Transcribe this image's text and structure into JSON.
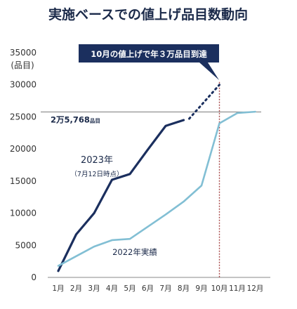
{
  "chart_data": {
    "type": "line",
    "title": "実施ベースでの値上げ品目数動向",
    "ylabel": "(品目)",
    "ylim": [
      0,
      35000
    ],
    "yticks": [
      0,
      5000,
      10000,
      15000,
      20000,
      25000,
      30000,
      35000
    ],
    "categories": [
      "1月",
      "2月",
      "3月",
      "4月",
      "5月",
      "6月",
      "7月",
      "8月",
      "9月",
      "10月",
      "11月",
      "12月"
    ],
    "series": [
      {
        "name": "2023年",
        "sublabel": "（7月12日時点）",
        "color": "#1b2f5e",
        "x": [
          1,
          2,
          3,
          4,
          5,
          6,
          7,
          8
        ],
        "values": [
          1000,
          6700,
          10000,
          15200,
          16100,
          19900,
          23600,
          24500
        ]
      },
      {
        "name": "2022年実績",
        "color": "#82bfd4",
        "x": [
          1,
          2,
          3,
          4,
          5,
          6,
          7,
          8,
          9,
          10,
          11,
          12
        ],
        "values": [
          1800,
          3300,
          4800,
          5800,
          6000,
          7900,
          9800,
          11800,
          14300,
          24000,
          25600,
          25800
        ]
      }
    ],
    "projection": {
      "color": "#1b2f5e",
      "x": [
        8,
        10
      ],
      "values": [
        24500,
        30000
      ]
    },
    "reference_line": {
      "value": 25768,
      "label_num": "2万5,768",
      "label_unit": "品目",
      "color": "#7a7a7a"
    },
    "vertical_marker": {
      "x": 10,
      "color": "#a84a4a"
    },
    "callout": {
      "text": "10月の値上げで年３万品目到達",
      "bg": "#1b2f5e",
      "fg": "#ffffff"
    }
  }
}
